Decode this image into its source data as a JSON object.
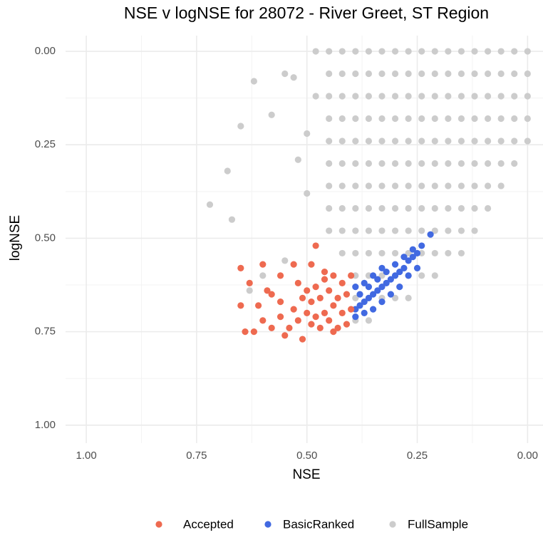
{
  "chart_data": {
    "type": "scatter",
    "title": "NSE v logNSE for 28072 - River Greet, ST Region",
    "x_label": "NSE",
    "y_label": "logNSE",
    "xlim": [
      1.047,
      -0.035
    ],
    "ylim": [
      1.048,
      -0.042
    ],
    "xticks": [
      {
        "value": 1,
        "label": "1.00"
      },
      {
        "value": 0.75,
        "label": "0.75"
      },
      {
        "value": 0.5,
        "label": "0.50"
      },
      {
        "value": 0.25,
        "label": "0.25"
      },
      {
        "value": 0,
        "label": "0.00"
      }
    ],
    "yticks": [
      {
        "value": 0,
        "label": "0.00"
      },
      {
        "value": 0.25,
        "label": "0.25"
      },
      {
        "value": 0.5,
        "label": "0.50"
      },
      {
        "value": 0.75,
        "label": "0.75"
      },
      {
        "value": 1,
        "label": "1.00"
      }
    ],
    "grid": true,
    "legend": "bottom",
    "series": [
      {
        "name": "Accepted",
        "color": "#ee6a50",
        "x": [
          0.4,
          0.42,
          0.44,
          0.46,
          0.48,
          0.5,
          0.41,
          0.43,
          0.45,
          0.47,
          0.49,
          0.51,
          0.4,
          0.42,
          0.44,
          0.46,
          0.48,
          0.5,
          0.41,
          0.43,
          0.45,
          0.47,
          0.49,
          0.52,
          0.53,
          0.52,
          0.49,
          0.48,
          0.46,
          0.54,
          0.56,
          0.58,
          0.6,
          0.62,
          0.64,
          0.65,
          0.63,
          0.59,
          0.56,
          0.61,
          0.65,
          0.55,
          0.58,
          0.6,
          0.53,
          0.51,
          0.44,
          0.56
        ],
        "values": [
          0.6,
          0.62,
          0.6,
          0.61,
          0.63,
          0.64,
          0.65,
          0.66,
          0.64,
          0.66,
          0.67,
          0.66,
          0.69,
          0.7,
          0.68,
          0.7,
          0.71,
          0.7,
          0.73,
          0.74,
          0.72,
          0.74,
          0.73,
          0.72,
          0.69,
          0.62,
          0.57,
          0.52,
          0.59,
          0.74,
          0.71,
          0.74,
          0.72,
          0.75,
          0.75,
          0.58,
          0.62,
          0.64,
          0.6,
          0.68,
          0.68,
          0.76,
          0.65,
          0.57,
          0.57,
          0.77,
          0.75,
          0.67
        ]
      },
      {
        "name": "BasicRanked",
        "color": "#4169e1",
        "x": [
          0.22,
          0.24,
          0.25,
          0.26,
          0.27,
          0.28,
          0.29,
          0.3,
          0.31,
          0.32,
          0.33,
          0.34,
          0.35,
          0.36,
          0.37,
          0.38,
          0.39,
          0.39,
          0.37,
          0.35,
          0.33,
          0.3,
          0.28,
          0.26,
          0.38,
          0.36,
          0.34,
          0.32,
          0.29,
          0.31,
          0.33,
          0.35,
          0.37,
          0.39,
          0.27,
          0.25
        ],
        "values": [
          0.49,
          0.52,
          0.54,
          0.55,
          0.56,
          0.58,
          0.59,
          0.6,
          0.61,
          0.62,
          0.63,
          0.64,
          0.65,
          0.66,
          0.67,
          0.68,
          0.69,
          0.63,
          0.62,
          0.6,
          0.58,
          0.57,
          0.55,
          0.53,
          0.65,
          0.63,
          0.61,
          0.59,
          0.63,
          0.65,
          0.67,
          0.69,
          0.7,
          0.71,
          0.6,
          0.58
        ]
      },
      {
        "name": "FullSample",
        "color": "#cccccc",
        "x": [
          0,
          0,
          0,
          0,
          0,
          0.03,
          0.03,
          0.03,
          0.03,
          0.03,
          0.03,
          0.06,
          0.06,
          0.06,
          0.06,
          0.06,
          0.06,
          0.06,
          0.09,
          0.09,
          0.09,
          0.09,
          0.09,
          0.09,
          0.09,
          0.09,
          0.12,
          0.12,
          0.12,
          0.12,
          0.12,
          0.12,
          0.12,
          0.12,
          0.12,
          0.15,
          0.15,
          0.15,
          0.15,
          0.15,
          0.15,
          0.15,
          0.15,
          0.15,
          0.15,
          0.18,
          0.18,
          0.18,
          0.18,
          0.18,
          0.18,
          0.18,
          0.18,
          0.18,
          0.18,
          0.21,
          0.21,
          0.21,
          0.21,
          0.21,
          0.21,
          0.21,
          0.21,
          0.21,
          0.21,
          0.21,
          0.24,
          0.24,
          0.24,
          0.24,
          0.24,
          0.24,
          0.24,
          0.24,
          0.24,
          0.24,
          0.24,
          0.27,
          0.27,
          0.27,
          0.27,
          0.27,
          0.27,
          0.27,
          0.27,
          0.27,
          0.27,
          0.27,
          0.27,
          0.3,
          0.3,
          0.3,
          0.3,
          0.3,
          0.3,
          0.3,
          0.3,
          0.3,
          0.3,
          0.3,
          0.3,
          0.33,
          0.33,
          0.33,
          0.33,
          0.33,
          0.33,
          0.33,
          0.33,
          0.33,
          0.33,
          0.33,
          0.33,
          0.36,
          0.36,
          0.36,
          0.36,
          0.36,
          0.36,
          0.36,
          0.36,
          0.36,
          0.36,
          0.36,
          0.36,
          0.36,
          0.39,
          0.39,
          0.39,
          0.39,
          0.39,
          0.39,
          0.39,
          0.39,
          0.39,
          0.39,
          0.39,
          0.39,
          0.39,
          0.42,
          0.42,
          0.42,
          0.42,
          0.42,
          0.42,
          0.42,
          0.42,
          0.42,
          0.42,
          0.45,
          0.45,
          0.45,
          0.45,
          0.45,
          0.45,
          0.45,
          0.45,
          0.45,
          0.72,
          0.68,
          0.65,
          0.67,
          0.62,
          0.55,
          0.53,
          0.58,
          0.5,
          0.52,
          0.48,
          0.5,
          0.55,
          0.6,
          0.63,
          0.48
        ],
        "values": [
          0,
          0.06,
          0.12,
          0.18,
          0.24,
          0,
          0.06,
          0.12,
          0.18,
          0.24,
          0.3,
          0,
          0.06,
          0.12,
          0.18,
          0.24,
          0.3,
          0.36,
          0,
          0.06,
          0.12,
          0.18,
          0.24,
          0.3,
          0.36,
          0.42,
          0,
          0.06,
          0.12,
          0.18,
          0.24,
          0.3,
          0.36,
          0.42,
          0.48,
          0,
          0.06,
          0.12,
          0.18,
          0.24,
          0.3,
          0.36,
          0.42,
          0.48,
          0.54,
          0,
          0.06,
          0.12,
          0.18,
          0.24,
          0.3,
          0.36,
          0.42,
          0.48,
          0.54,
          0,
          0.06,
          0.12,
          0.18,
          0.24,
          0.3,
          0.36,
          0.42,
          0.48,
          0.54,
          0.6,
          0,
          0.06,
          0.12,
          0.18,
          0.24,
          0.3,
          0.36,
          0.42,
          0.48,
          0.54,
          0.6,
          0,
          0.06,
          0.12,
          0.18,
          0.24,
          0.3,
          0.36,
          0.42,
          0.48,
          0.54,
          0.6,
          0.66,
          0,
          0.06,
          0.12,
          0.18,
          0.24,
          0.3,
          0.36,
          0.42,
          0.48,
          0.54,
          0.6,
          0.66,
          0,
          0.06,
          0.12,
          0.18,
          0.24,
          0.3,
          0.36,
          0.42,
          0.48,
          0.54,
          0.6,
          0.66,
          0,
          0.06,
          0.12,
          0.18,
          0.24,
          0.3,
          0.36,
          0.42,
          0.48,
          0.54,
          0.6,
          0.66,
          0.72,
          0,
          0.06,
          0.12,
          0.18,
          0.24,
          0.3,
          0.36,
          0.42,
          0.48,
          0.54,
          0.6,
          0.66,
          0.72,
          0,
          0.06,
          0.12,
          0.18,
          0.24,
          0.3,
          0.36,
          0.42,
          0.48,
          0.54,
          0,
          0.06,
          0.12,
          0.18,
          0.24,
          0.3,
          0.36,
          0.42,
          0.48,
          0.41,
          0.32,
          0.2,
          0.45,
          0.08,
          0.06,
          0.07,
          0.17,
          0.22,
          0.29,
          0.0,
          0.38,
          0.56,
          0.6,
          0.64,
          0.12
        ]
      }
    ]
  }
}
